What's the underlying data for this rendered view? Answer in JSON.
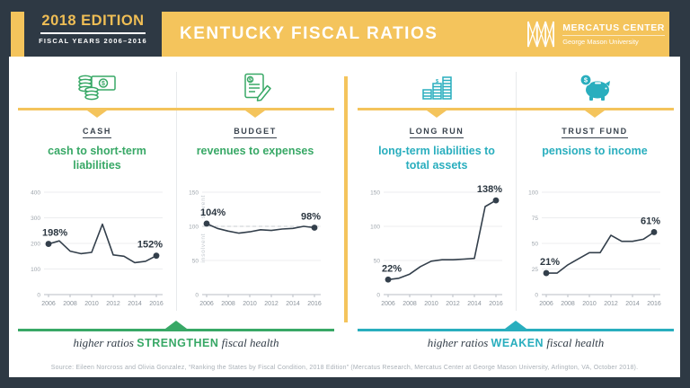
{
  "colors": {
    "navy": "#2E3944",
    "yellow": "#F4C45C",
    "gold": "#F0BE55",
    "green": "#38A866",
    "teal": "#29AEBE",
    "ink": "#333F4B"
  },
  "header": {
    "badge": {
      "title": "2018 EDITION",
      "subtitle": "FISCAL YEARS 2006–2016"
    },
    "title": "KENTUCKY FISCAL RATIOS",
    "logo": {
      "name": "MERCATUS CENTER",
      "sub": "George Mason University"
    }
  },
  "panels": [
    {
      "category": "CASH",
      "measure": "cash to short-term liabilities",
      "accent": "green",
      "icon": "cash-coins-banknote-icon"
    },
    {
      "category": "BUDGET",
      "measure": "revenues to expenses",
      "accent": "green",
      "icon": "budget-document-pencil-icon"
    },
    {
      "category": "LONG RUN",
      "measure": "long-term liabilities to total assets",
      "accent": "teal",
      "icon": "coin-stacks-growth-icon"
    },
    {
      "category": "TRUST FUND",
      "measure": "pensions to income",
      "accent": "teal",
      "icon": "piggy-bank-icon"
    }
  ],
  "chart_data": [
    {
      "type": "line",
      "title": "cash to short-term liabilities",
      "x": [
        2006,
        2007,
        2008,
        2009,
        2010,
        2011,
        2012,
        2013,
        2014,
        2015,
        2016
      ],
      "values": [
        198,
        210,
        170,
        160,
        165,
        275,
        155,
        150,
        125,
        130,
        152
      ],
      "ylim": [
        0,
        400
      ],
      "yticks": [
        0,
        100,
        200,
        300,
        400
      ],
      "xticks": [
        2006,
        2008,
        2010,
        2012,
        2014,
        2016
      ],
      "start_label": "198%",
      "end_label": "152%",
      "grid": true,
      "legend": "none"
    },
    {
      "type": "line",
      "title": "revenues to expenses",
      "x": [
        2006,
        2007,
        2008,
        2009,
        2010,
        2011,
        2012,
        2013,
        2014,
        2015,
        2016
      ],
      "values": [
        104,
        97,
        93,
        90,
        92,
        95,
        94,
        96,
        97,
        100,
        98
      ],
      "ylim": [
        0,
        150
      ],
      "yticks": [
        0,
        50,
        100,
        150
      ],
      "xticks": [
        2006,
        2008,
        2010,
        2012,
        2014,
        2016
      ],
      "benchmark": 100,
      "side_labels": [
        "solvent",
        "insolvent"
      ],
      "start_label": "104%",
      "end_label": "98%",
      "grid": true,
      "legend": "none"
    },
    {
      "type": "line",
      "title": "long-term liabilities to total assets",
      "x": [
        2006,
        2007,
        2008,
        2009,
        2010,
        2011,
        2012,
        2013,
        2014,
        2015,
        2016
      ],
      "values": [
        22,
        24,
        30,
        41,
        49,
        51,
        51,
        52,
        53,
        129,
        138
      ],
      "ylim": [
        0,
        150
      ],
      "yticks": [
        0,
        50,
        100,
        150
      ],
      "xticks": [
        2006,
        2008,
        2010,
        2012,
        2014,
        2016
      ],
      "start_label": "22%",
      "end_label": "138%",
      "grid": true,
      "legend": "none"
    },
    {
      "type": "line",
      "title": "pensions to income",
      "x": [
        2006,
        2007,
        2008,
        2009,
        2010,
        2011,
        2012,
        2013,
        2014,
        2015,
        2016
      ],
      "values": [
        21,
        21,
        29,
        35,
        41,
        41,
        58,
        52,
        52,
        54,
        61
      ],
      "ylim": [
        0,
        100
      ],
      "yticks": [
        0,
        25,
        50,
        75,
        100
      ],
      "xticks": [
        2006,
        2008,
        2010,
        2012,
        2014,
        2016
      ],
      "start_label": "21%",
      "end_label": "61%",
      "grid": true,
      "legend": "none"
    }
  ],
  "footers": [
    {
      "prefix": "higher ratios",
      "emphasis": "STRENGTHEN",
      "suffix": "fiscal health",
      "accent": "green"
    },
    {
      "prefix": "higher ratios",
      "emphasis": "WEAKEN",
      "suffix": "fiscal health",
      "accent": "teal"
    }
  ],
  "source": "Source: Eileen Norcross and Olivia Gonzalez, “Ranking the States by Fiscal Condition, 2018 Edition” (Mercatus Research, Mercatus Center at George Mason University, Arlington, VA, October 2018)."
}
